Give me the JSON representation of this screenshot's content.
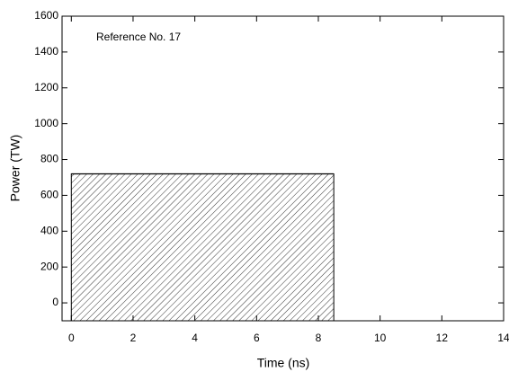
{
  "chart_data": {
    "type": "area",
    "x_label": "Time (ns)",
    "y_label": "Power (TW)",
    "annotation": "Reference No. 17",
    "x": [
      0,
      8.5
    ],
    "values": [
      720,
      720
    ],
    "color": "#000000",
    "hatch": true,
    "xlim": [
      -0.3,
      14
    ],
    "ylim": [
      -100,
      1600
    ],
    "xticks": [
      0,
      2,
      4,
      6,
      8,
      10,
      12,
      14
    ],
    "yticks": [
      0,
      200,
      400,
      600,
      800,
      1000,
      1200,
      1400,
      1600
    ],
    "grid": false
  }
}
